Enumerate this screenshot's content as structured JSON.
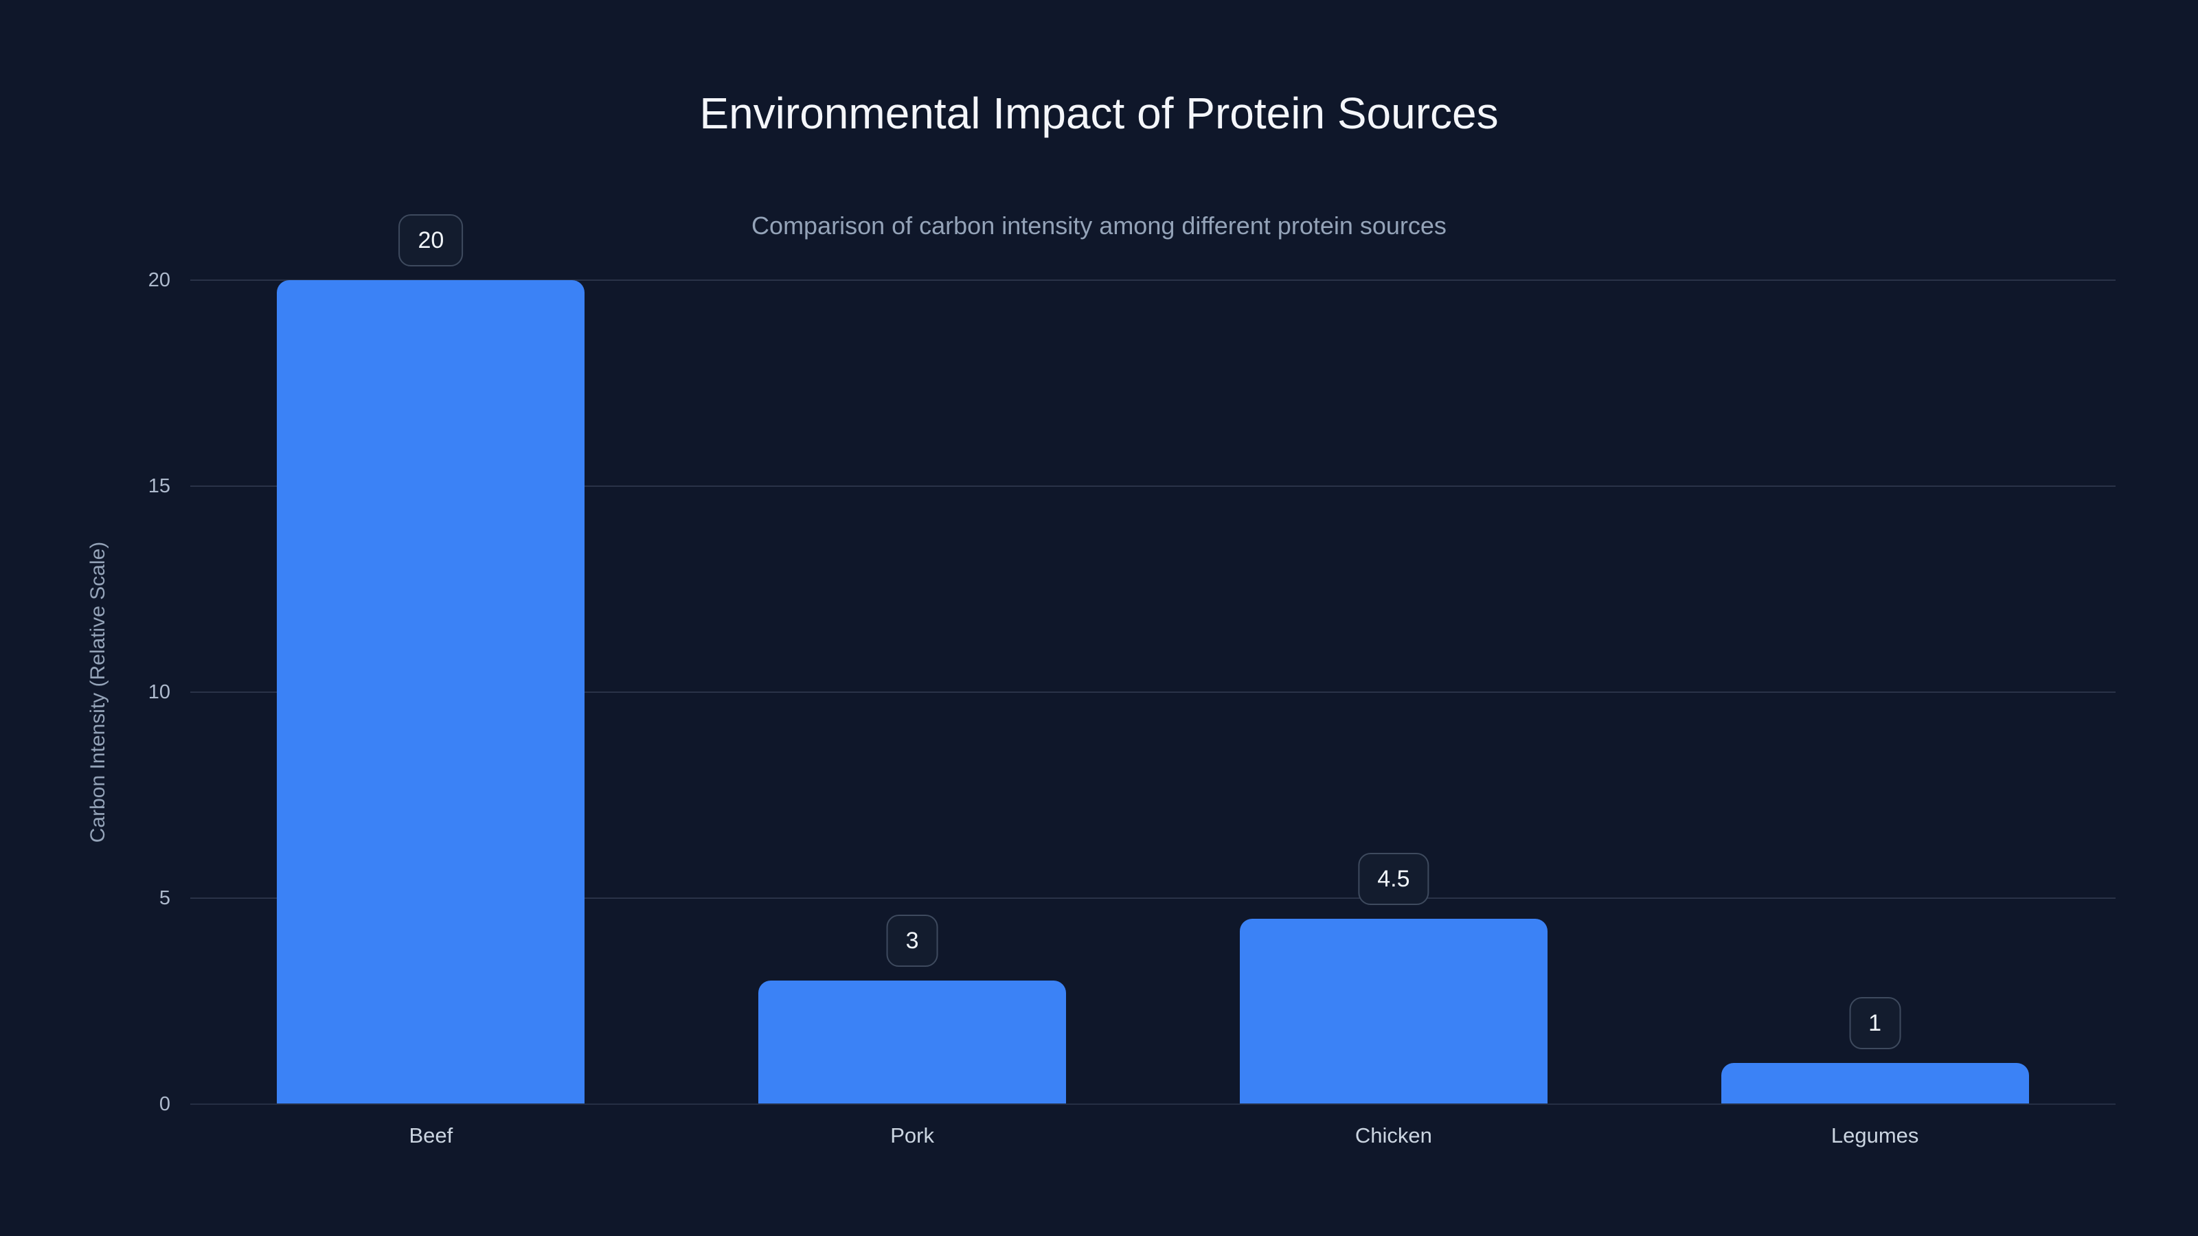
{
  "page": {
    "background_color": "#0f172a"
  },
  "chart_data": {
    "type": "bar",
    "title": "Environmental Impact of Protein Sources",
    "subtitle": "Comparison of carbon intensity among different protein sources",
    "categories": [
      "Beef",
      "Pork",
      "Chicken",
      "Legumes"
    ],
    "values": [
      20,
      3,
      4.5,
      1
    ],
    "value_labels": [
      "20",
      "3",
      "4.5",
      "1"
    ],
    "xlabel": "",
    "ylabel": "Carbon Intensity (Relative Scale)",
    "ylim": [
      0,
      20
    ],
    "yticks": [
      0,
      5,
      10,
      15,
      20
    ],
    "grid": "horizontal",
    "legend": "none",
    "bar_color": "#3b82f6",
    "badge_text_color": "#f1f5f9",
    "badge_border_color": "#3e4a5e",
    "title_color": "#f4f6fa",
    "subtitle_color": "#94a3b8",
    "tick_label_color": "#aebacd",
    "category_label_color": "#cbd5e1",
    "gridline_color": "#2a3348"
  }
}
